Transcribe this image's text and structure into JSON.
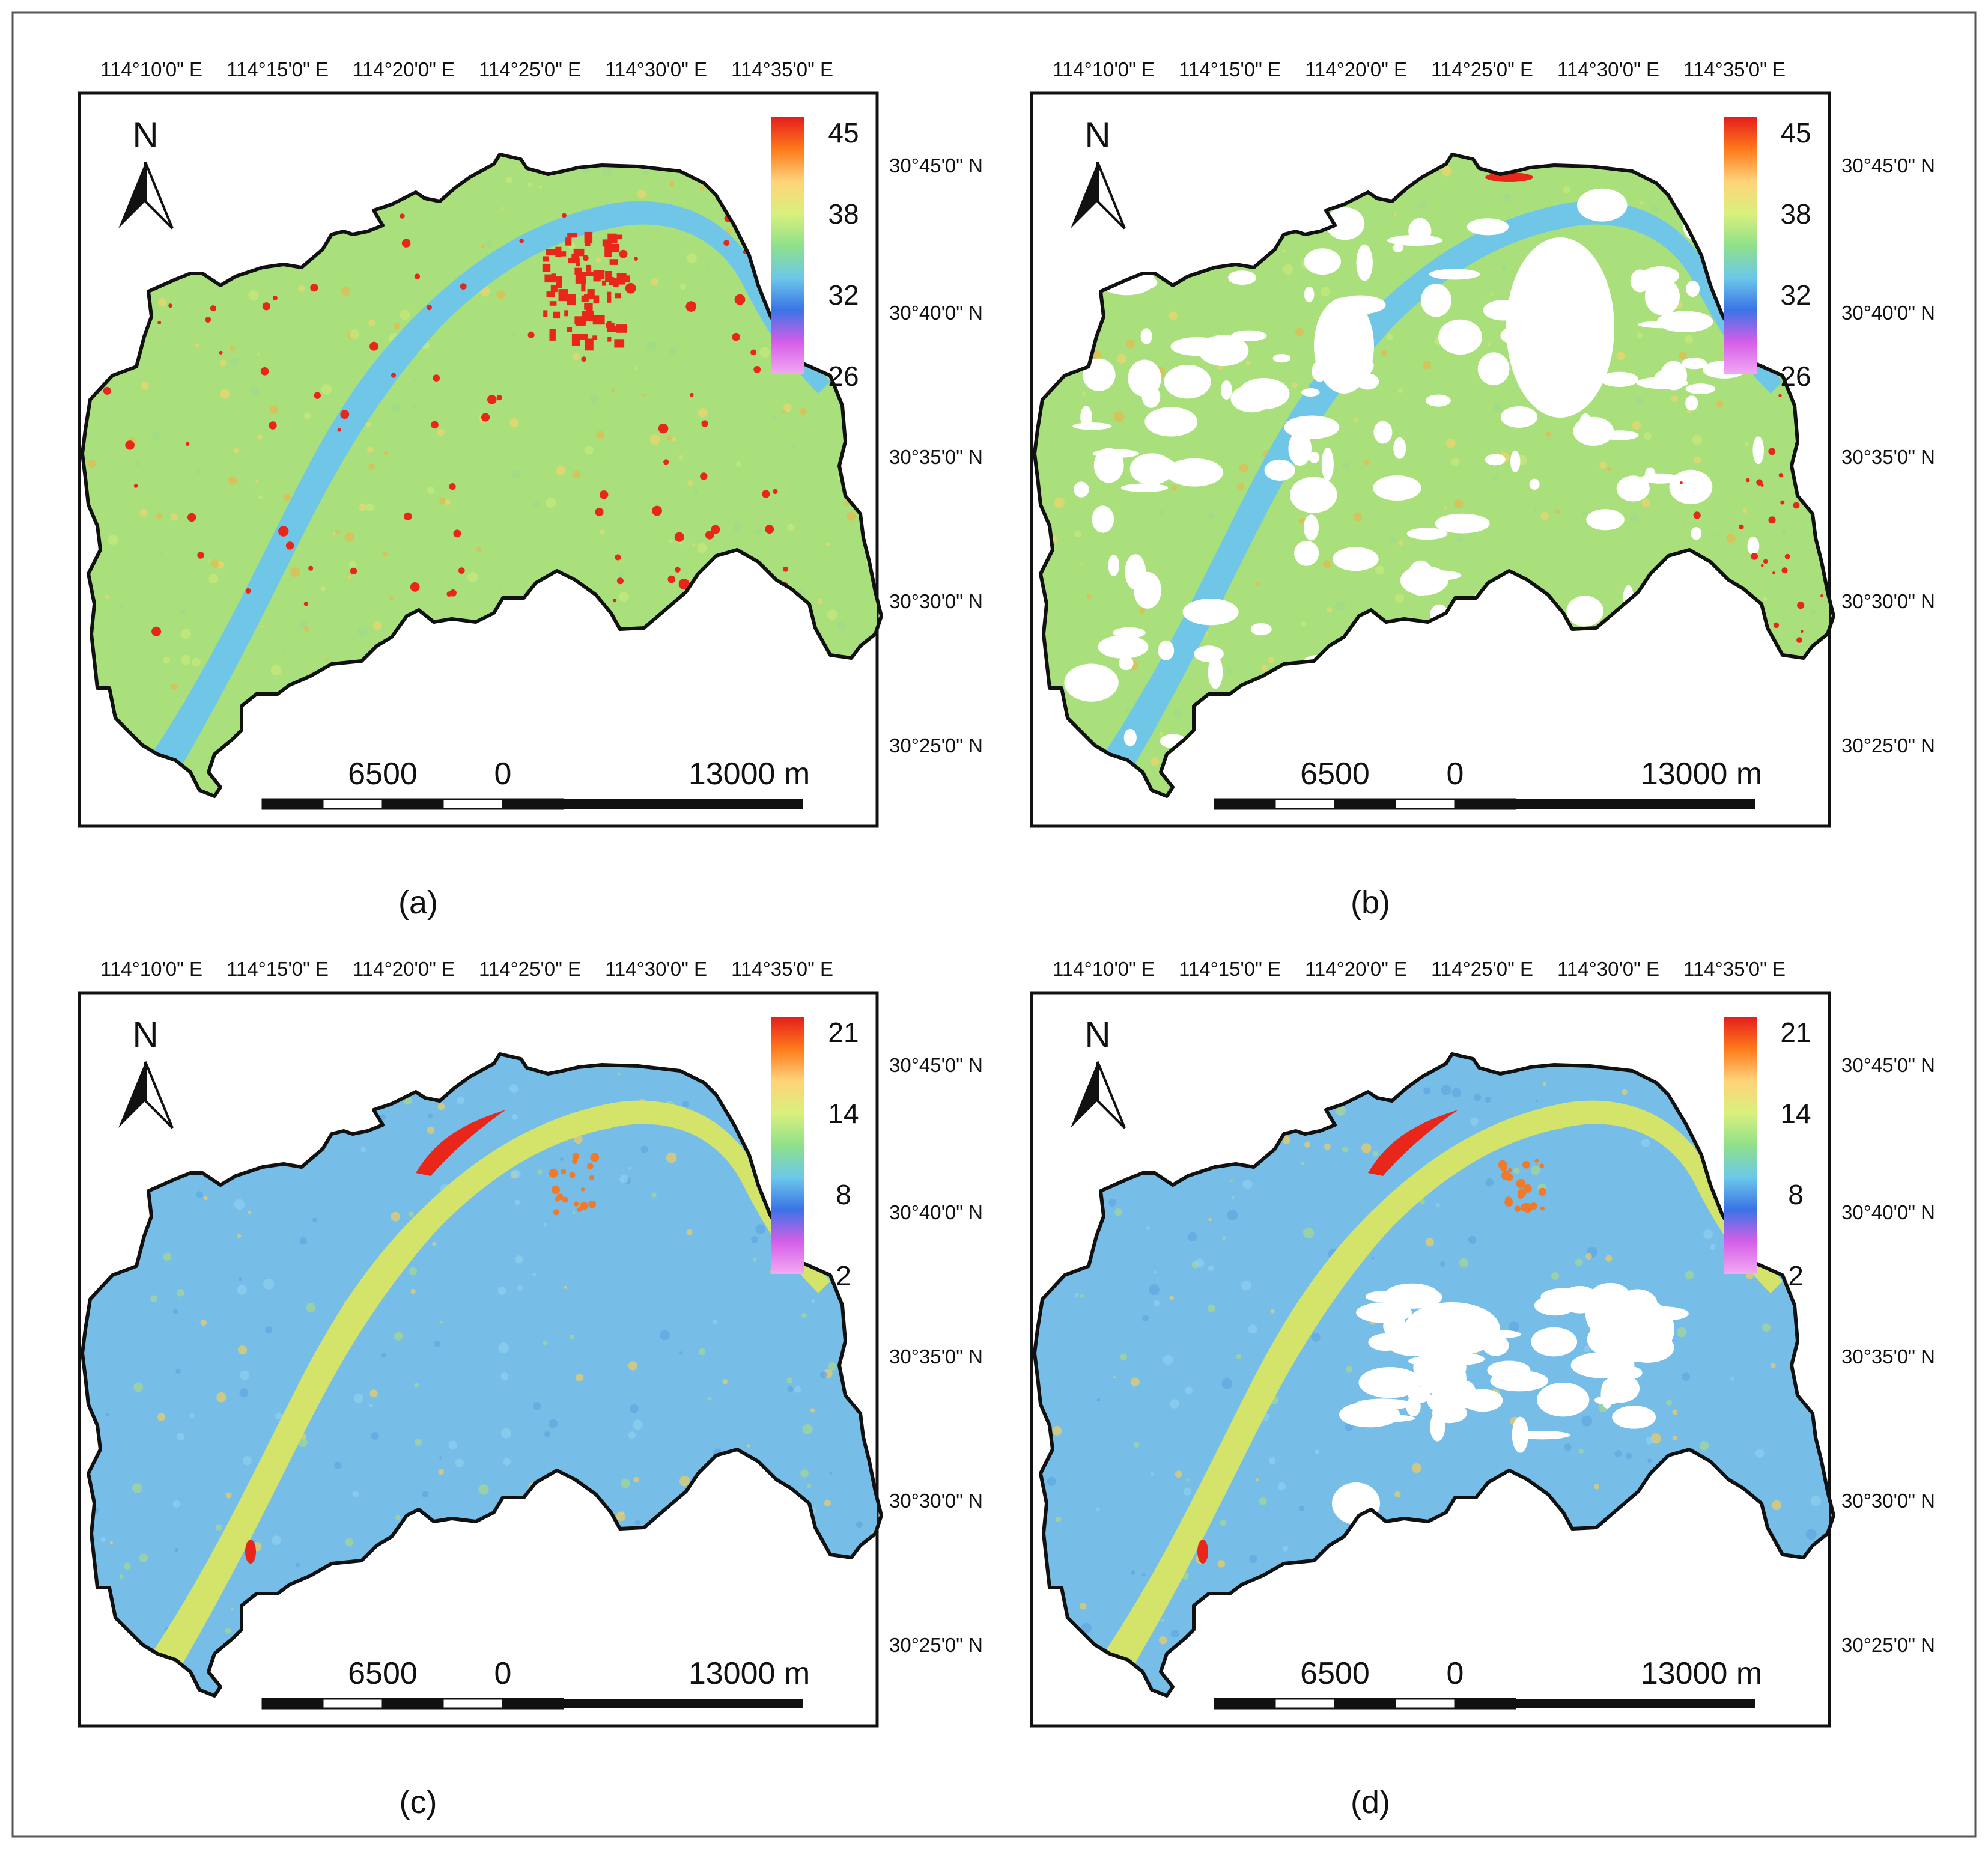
{
  "figure": {
    "colors": {
      "background": "#ffffff",
      "outer_frame": "#555555",
      "panel_frame": "#111111",
      "land_warm": "#a9e07c",
      "river_water": "#6fc6e6",
      "hotspot": "#e8261a",
      "river_yellow": "#d4e46a",
      "land_blue": "#76bde8",
      "gap_white": "#ffffff"
    },
    "colormap": [
      "#e51d1d",
      "#ff7a1a",
      "#ffd37a",
      "#d9f07c",
      "#8fe08a",
      "#6cc8ea",
      "#3a74e6",
      "#d65ee8",
      "#f2a9f2"
    ],
    "north_label": "N",
    "panels": [
      {
        "id": "a",
        "caption": "(a)",
        "lon_labels": [
          "114°10'0\" E",
          "114°15'0\" E",
          "114°20'0\" E",
          "114°25'0\" E",
          "114°30'0\" E",
          "114°35'0\" E"
        ],
        "lat_labels": [
          "30°45'0\" N",
          "30°40'0\" N",
          "30°35'0\" N",
          "30°30'0\" N",
          "30°25'0\" N"
        ],
        "legend_ticks": [
          "45",
          "38",
          "32",
          "26"
        ],
        "scale_labels": [
          "6500",
          "0",
          "13000 m"
        ],
        "style": "warm"
      },
      {
        "id": "b",
        "caption": "(b)",
        "lon_labels": [
          "114°10'0\" E",
          "114°15'0\" E",
          "114°20'0\" E",
          "114°25'0\" E",
          "114°30'0\" E",
          "114°35'0\" E"
        ],
        "lat_labels": [
          "30°45'0\" N",
          "30°40'0\" N",
          "30°35'0\" N",
          "30°30'0\" N",
          "30°25'0\" N"
        ],
        "legend_ticks": [
          "45",
          "38",
          "32",
          "26"
        ],
        "scale_labels": [
          "6500",
          "0",
          "13000 m"
        ],
        "style": "warm-masked"
      },
      {
        "id": "c",
        "caption": "(c)",
        "lon_labels": [
          "114°10'0\" E",
          "114°15'0\" E",
          "114°20'0\" E",
          "114°25'0\" E",
          "114°30'0\" E",
          "114°35'0\" E"
        ],
        "lat_labels": [
          "30°45'0\" N",
          "30°40'0\" N",
          "30°35'0\" N",
          "30°30'0\" N",
          "30°25'0\" N"
        ],
        "legend_ticks": [
          "21",
          "14",
          "8",
          "2"
        ],
        "scale_labels": [
          "6500",
          "0",
          "13000 m"
        ],
        "style": "cool"
      },
      {
        "id": "d",
        "caption": "(d)",
        "lon_labels": [
          "114°10'0\" E",
          "114°15'0\" E",
          "114°20'0\" E",
          "114°25'0\" E",
          "114°30'0\" E",
          "114°35'0\" E"
        ],
        "lat_labels": [
          "30°45'0\" N",
          "30°40'0\" N",
          "30°35'0\" N",
          "30°30'0\" N",
          "30°25'0\" N"
        ],
        "legend_ticks": [
          "21",
          "14",
          "8",
          "2"
        ],
        "scale_labels": [
          "6500",
          "0",
          "13000 m"
        ],
        "style": "cool-masked"
      }
    ]
  }
}
